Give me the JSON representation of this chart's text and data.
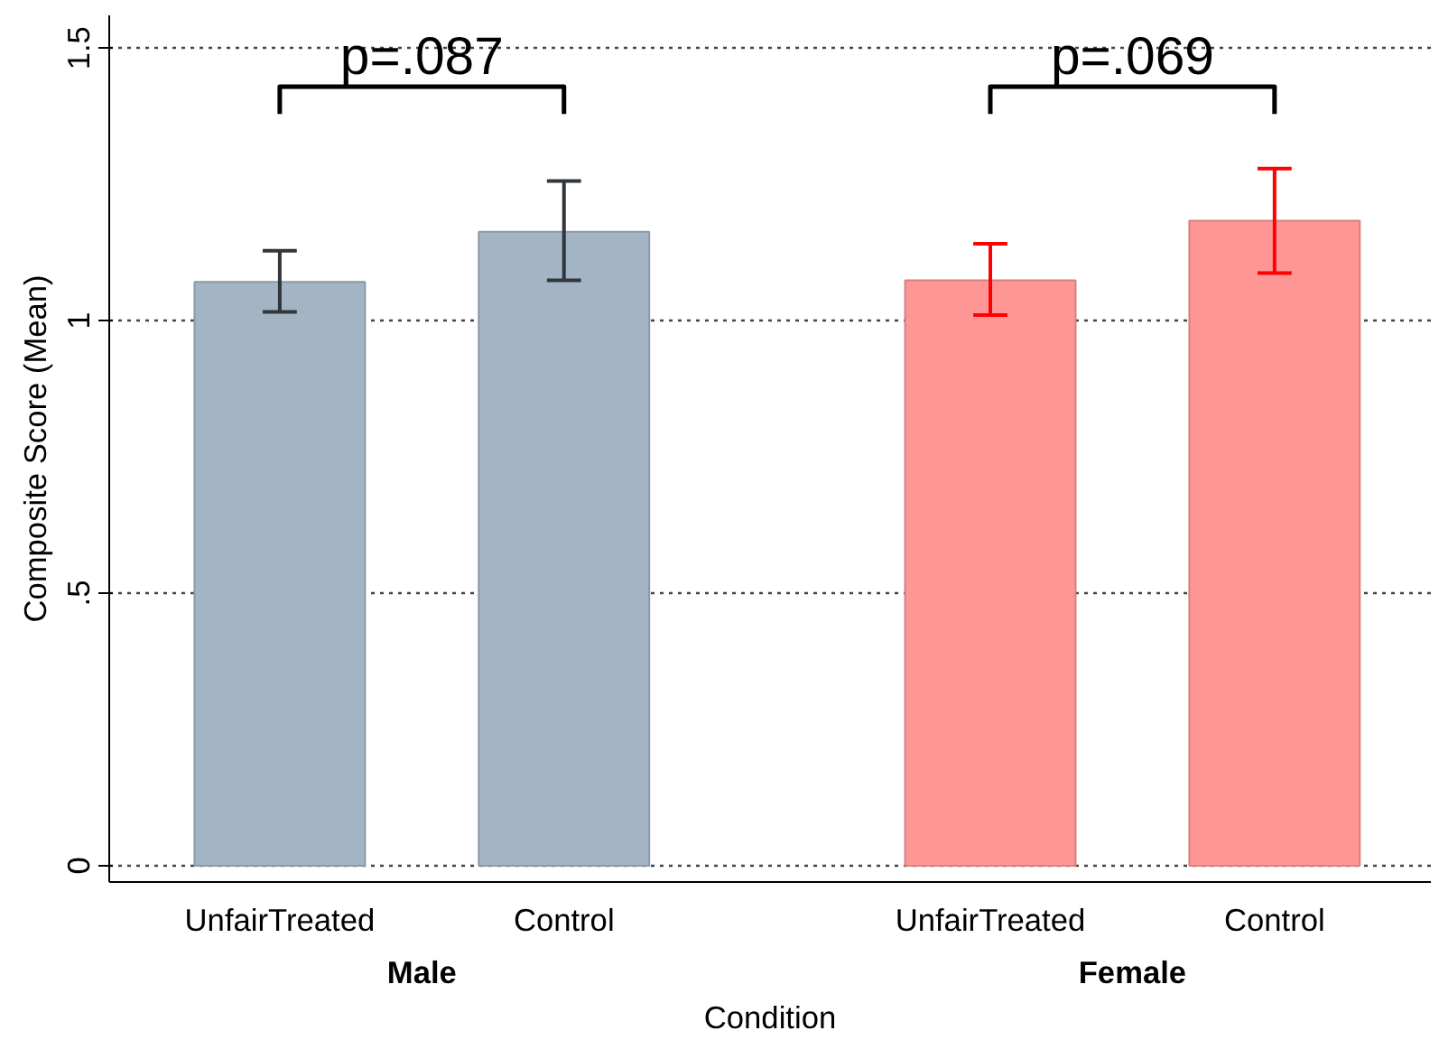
{
  "chart_data": {
    "type": "bar",
    "xlabel": "Condition",
    "ylabel": "Composite Score (Mean)",
    "categories": [
      "UnfairTreated",
      "Control",
      "UnfairTreated",
      "Control"
    ],
    "values": [
      1.071,
      1.163,
      1.074,
      1.183
    ],
    "colors": [
      "#a3b4c4",
      "#a3b4c4",
      "#ff9696",
      "#ff9696"
    ],
    "errors": [
      [
        1.016,
        1.128
      ],
      [
        1.074,
        1.256
      ],
      [
        1.01,
        1.141
      ],
      [
        1.087,
        1.279
      ]
    ],
    "ylim": [
      -0.03,
      1.56
    ],
    "yticks": [
      0,
      {
        "value": 0.5,
        "label": ".5"
      },
      1,
      1.5
    ],
    "grid": "y",
    "annotations": [
      "p=.087",
      "p=.069",
      "Male",
      "Female"
    ]
  }
}
